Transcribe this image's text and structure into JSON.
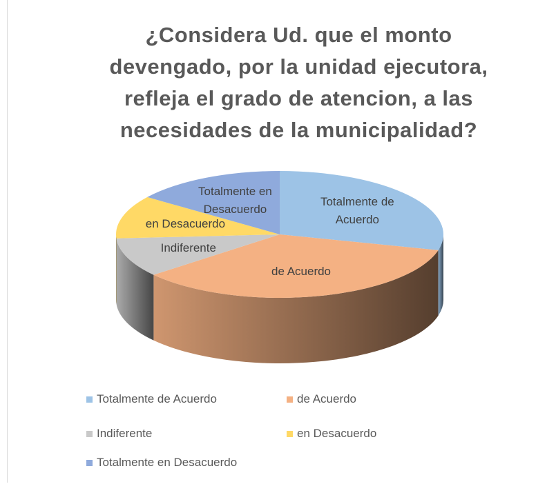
{
  "chart_data": {
    "type": "pie3d",
    "title": "¿Considera  Ud. que el monto devengado, por la unidad ejecutora, refleja el grado de atencion, a las necesidades de la municipalidad?",
    "categories": [
      "Totalmente de Acuerdo",
      "de Acuerdo",
      "Indiferente",
      "en Desacuerdo",
      "Totalmente en Desacuerdo"
    ],
    "values": [
      29,
      35,
      10,
      11,
      15
    ],
    "colors": [
      "#9dc3e6",
      "#f4b183",
      "#c9c9c9",
      "#ffd966",
      "#8faadc"
    ],
    "legend": "bottom"
  }
}
